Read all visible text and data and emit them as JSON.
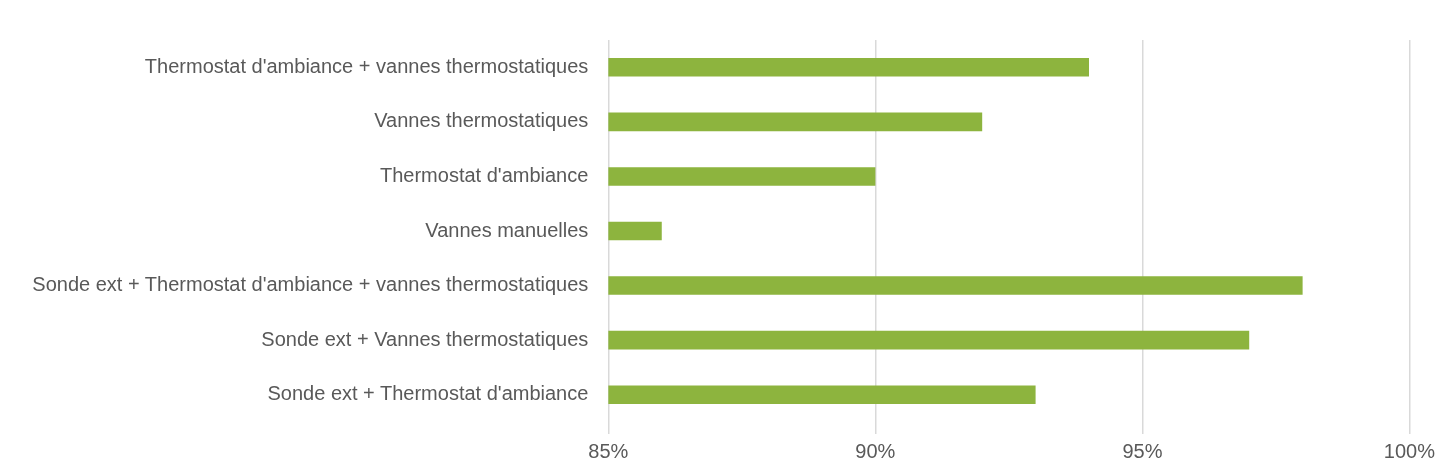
{
  "chart_data": {
    "type": "bar",
    "orientation": "horizontal",
    "categories": [
      "Thermostat d'ambiance + vannes thermostatiques",
      "Vannes thermostatiques",
      "Thermostat d'ambiance",
      "Vannes manuelles",
      "Sonde ext + Thermostat d'ambiance + vannes thermostatiques",
      "Sonde ext + Vannes thermostatiques",
      "Sonde ext + Thermostat d'ambiance"
    ],
    "values": [
      94,
      92,
      90,
      86,
      98,
      97,
      93
    ],
    "color": "#8db43e",
    "xlim": [
      85,
      100
    ],
    "xticks": [
      {
        "value": 85,
        "label": "85%"
      },
      {
        "value": 90,
        "label": "90%"
      },
      {
        "value": 95,
        "label": "95%"
      },
      {
        "value": 100,
        "label": "100%"
      }
    ],
    "grid": "x",
    "legend": false
  }
}
